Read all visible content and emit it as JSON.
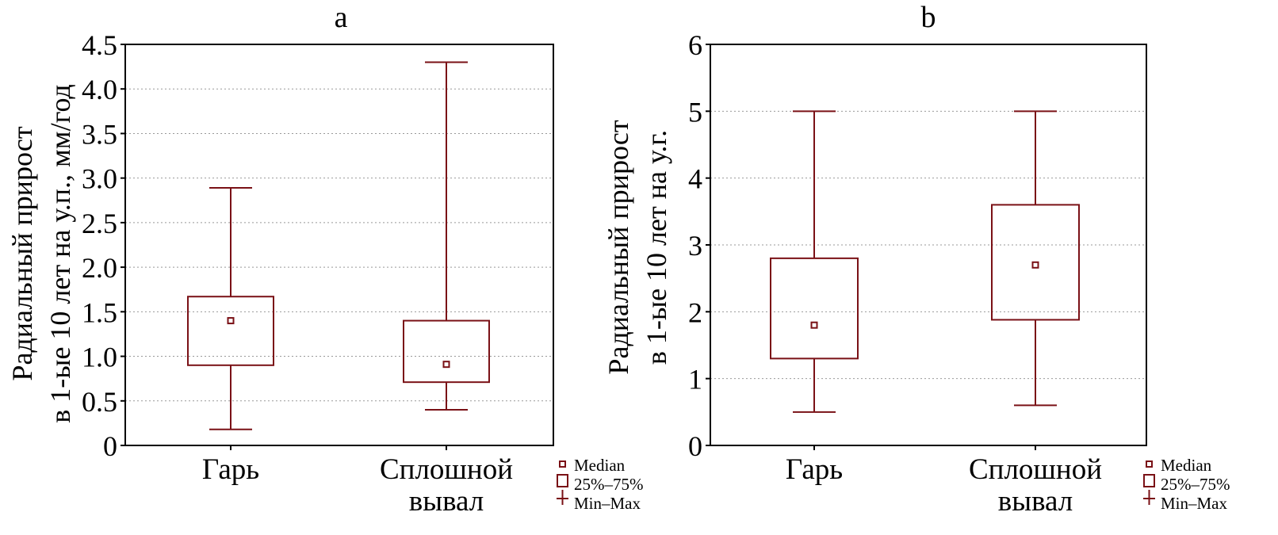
{
  "legend": {
    "median_label": "Median",
    "box_label": "25%–75%",
    "range_label": "Min–Max"
  },
  "colors": {
    "series": "#7a1116",
    "frame": "#000000",
    "grid": "#999999"
  },
  "chart_data": [
    {
      "type": "box",
      "title": "a",
      "ylabel": [
        "Радиальный прирост",
        "в 1-ые 10 лет на у.п., мм/год"
      ],
      "ylim": [
        0,
        4.5
      ],
      "yticks": [
        0,
        0.5,
        1.0,
        1.5,
        2.0,
        2.5,
        3.0,
        3.5,
        4.0,
        4.5
      ],
      "ytick_labels": [
        "0",
        "0.5",
        "1.0",
        "1.5",
        "2.0",
        "2.5",
        "3.0",
        "3.5",
        "4.0",
        "4.5"
      ],
      "grid": true,
      "legend_position": "bottom-right",
      "categories": [
        [
          "Гарь"
        ],
        [
          "Сплошной",
          "вывал"
        ]
      ],
      "boxes": [
        {
          "min": 0.18,
          "q1": 0.9,
          "median": 1.4,
          "q3": 1.67,
          "max": 2.89
        },
        {
          "min": 0.4,
          "q1": 0.71,
          "median": 0.91,
          "q3": 1.4,
          "max": 4.3
        }
      ]
    },
    {
      "type": "box",
      "title": "b",
      "ylabel": [
        "Радиальный прирост",
        "в 1-ые 10 лет на у.г."
      ],
      "ylim": [
        0,
        6
      ],
      "yticks": [
        0,
        1,
        2,
        3,
        4,
        5,
        6
      ],
      "ytick_labels": [
        "0",
        "1",
        "2",
        "3",
        "4",
        "5",
        "6"
      ],
      "grid": true,
      "legend_position": "bottom-right",
      "categories": [
        [
          "Гарь"
        ],
        [
          "Сплошной",
          "вывал"
        ]
      ],
      "boxes": [
        {
          "min": 0.5,
          "q1": 1.3,
          "median": 1.8,
          "q3": 2.8,
          "max": 5.0
        },
        {
          "min": 0.6,
          "q1": 1.88,
          "median": 2.7,
          "q3": 3.6,
          "max": 5.0
        }
      ]
    }
  ]
}
